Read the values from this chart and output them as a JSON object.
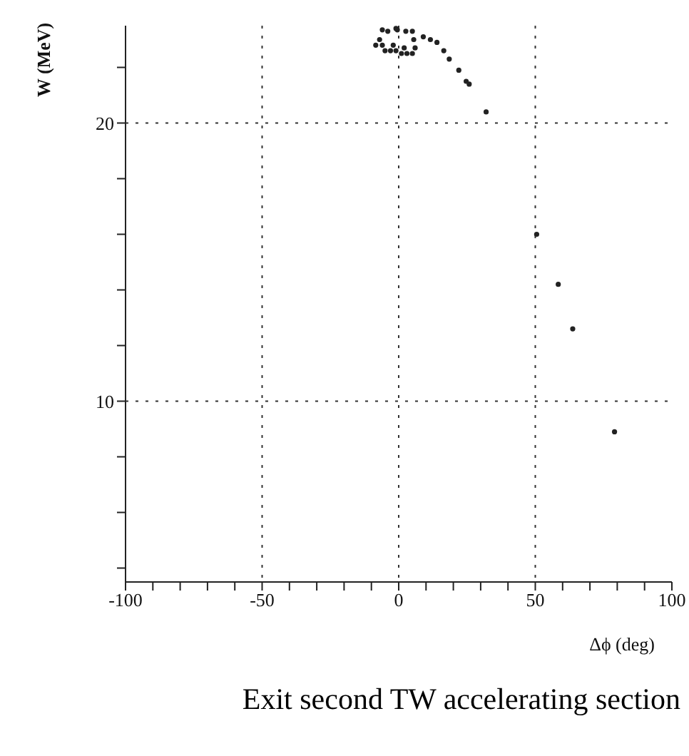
{
  "chart_data": {
    "type": "scatter",
    "title": "Exit second TW accelerating section",
    "xlabel": "Δϕ (deg)",
    "ylabel": "W (MeV)",
    "xlim": [
      -100,
      100
    ],
    "ylim": [
      3.5,
      23.5
    ],
    "xticks": [
      -100,
      {
        "value": -90,
        "label": null
      },
      {
        "value": -80,
        "label": null
      },
      {
        "value": -70,
        "label": null
      },
      {
        "value": -60,
        "label": null
      },
      -50,
      {
        "value": -40,
        "label": null
      },
      {
        "value": -30,
        "label": null
      },
      {
        "value": -20,
        "label": null
      },
      {
        "value": -10,
        "label": null
      },
      0,
      {
        "value": 10,
        "label": null
      },
      {
        "value": 20,
        "label": null
      },
      {
        "value": 30,
        "label": null
      },
      {
        "value": 40,
        "label": null
      },
      50,
      {
        "value": 60,
        "label": null
      },
      {
        "value": 70,
        "label": null
      },
      {
        "value": 80,
        "label": null
      },
      {
        "value": 90,
        "label": null
      },
      100
    ],
    "yticks": [
      {
        "value": 4,
        "label": null
      },
      {
        "value": 6,
        "label": null
      },
      {
        "value": 8,
        "label": null
      },
      10,
      {
        "value": 12,
        "label": null
      },
      {
        "value": 14,
        "label": null
      },
      {
        "value": 16,
        "label": null
      },
      {
        "value": 18,
        "label": null
      },
      20,
      {
        "value": 22,
        "label": null
      }
    ],
    "grid": true,
    "marker": "circle",
    "series": [
      {
        "color": "#222222",
        "x": [
          -8.4,
          -5,
          -3,
          -1,
          1,
          3,
          5,
          -6,
          -2,
          2,
          6,
          -7,
          -4,
          -0.5,
          2.6,
          5.5,
          9,
          11.6,
          14,
          16.5,
          18.5,
          22,
          24.7,
          25.8,
          -6,
          -1,
          5,
          32,
          50.5,
          58.4,
          63.7,
          79
        ],
        "values": [
          22.8,
          22.6,
          22.6,
          22.6,
          22.5,
          22.5,
          22.5,
          22.8,
          22.8,
          22.7,
          22.7,
          23.0,
          23.3,
          23.35,
          23.3,
          23.0,
          23.1,
          23.0,
          22.9,
          22.6,
          22.3,
          21.9,
          21.5,
          21.4,
          23.35,
          23.4,
          23.3,
          20.4,
          16.0,
          14.2,
          12.6,
          8.9
        ]
      }
    ]
  }
}
